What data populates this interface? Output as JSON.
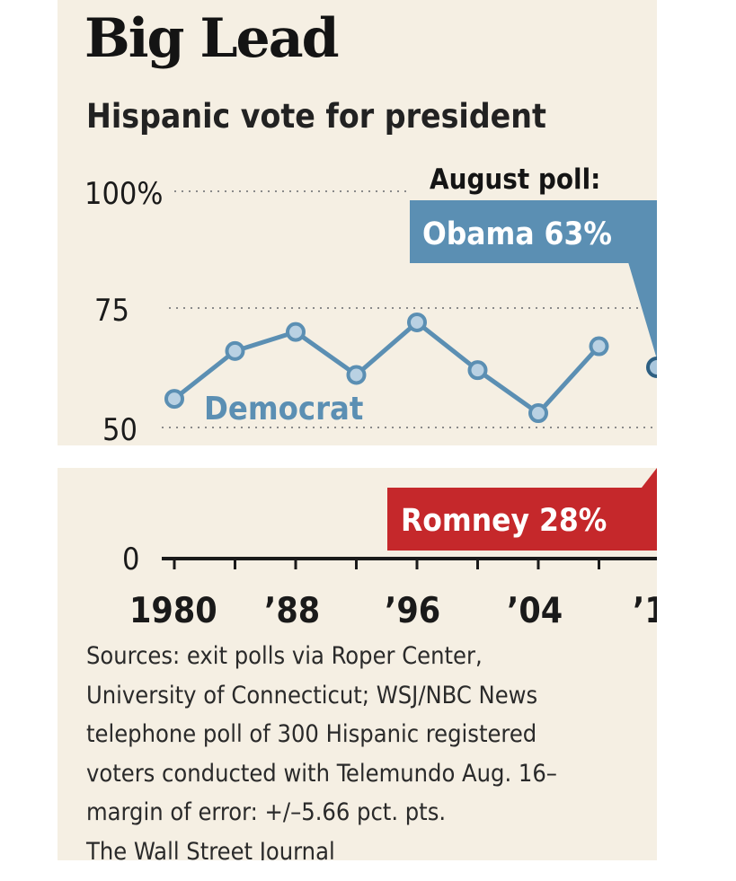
{
  "header": {
    "title": "Big Lead",
    "subtitle": "Hispanic vote for president"
  },
  "callouts": {
    "heading": "August poll:",
    "democrat": "Obama 63%",
    "republican": "Romney 28%"
  },
  "chart_data": {
    "type": "line",
    "title": "Big Lead",
    "subtitle": "Hispanic vote for president",
    "x_tick_labels": [
      "1980",
      "’88",
      "’96",
      "’04",
      "’1"
    ],
    "y_tick_labels": [
      "100%",
      "75",
      "50",
      "0"
    ],
    "ylim": [
      0,
      100
    ],
    "series": [
      {
        "name": "Democrat",
        "x": [
          1980,
          1984,
          1988,
          1992,
          1996,
          2000,
          2004,
          2008
        ],
        "values": [
          56,
          66,
          70,
          61,
          72,
          62,
          53,
          67
        ]
      }
    ],
    "poll": {
      "year": 2012,
      "democrat": 63,
      "republican": 28
    },
    "grid": true
  },
  "footer": {
    "sources": [
      "Sources: exit polls via Roper Center,",
      "University of Connecticut; WSJ/NBC News",
      "telephone poll of 300 Hispanic registered",
      "voters conducted with Telemundo Aug. 16–",
      "margin of error: +/–5.66 pct. pts."
    ],
    "credit": "The Wall Street Journal"
  },
  "colors": {
    "background": "#f5efe3",
    "democrat": "#5b8fb3",
    "republican": "#c5282b",
    "text": "#1a1a1a",
    "grid": "#8a8a8a"
  }
}
